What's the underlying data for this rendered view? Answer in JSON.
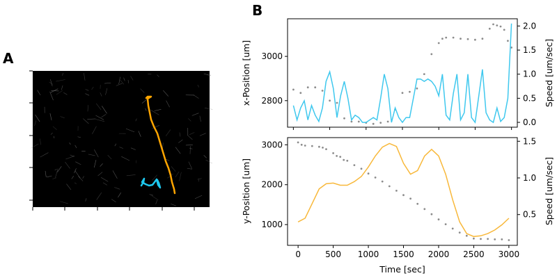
{
  "panels": {
    "a": "A",
    "b": "B"
  },
  "colors": {
    "orange": "#ffa500",
    "cyan": "#1ec8ee",
    "gray": "#8c8c8c",
    "speed_x": "#3fc8ee",
    "speed_y": "#f8b83a"
  },
  "chart_data": [
    {
      "type": "image",
      "panel": "A",
      "tracks": [
        {
          "name": "",
          "color": "orange"
        },
        {
          "name": "",
          "color": "cyan"
        }
      ]
    },
    {
      "type": "line",
      "panel": "B-top",
      "xlabel": "",
      "ylabel": "x-Position [um]",
      "ylabel_right": "Speed [um/sec]",
      "xlim": [
        -80,
        3080
      ],
      "ylim": [
        2680,
        3170
      ],
      "ylim_right": [
        -0.1,
        2.15
      ],
      "x_ticks": [
        0,
        500,
        1000,
        1500,
        2000,
        2500,
        3000
      ],
      "y_ticks": [
        2800,
        3000
      ],
      "y_ticks_right": [
        0.0,
        0.5,
        1.0,
        1.5,
        2.0
      ],
      "series": [
        {
          "axis": "left",
          "style": "dots",
          "color": "gray",
          "x": [
            0,
            100,
            200,
            300,
            400,
            500,
            600,
            700,
            800,
            900,
            1000,
            1100,
            1200,
            1300,
            1400,
            1500,
            1600,
            1700,
            1800,
            1900,
            2000,
            2050,
            2100,
            2200,
            2300,
            2400,
            2500,
            2600,
            2700,
            2750,
            2800,
            2850,
            2900,
            2950,
            3000
          ],
          "y": [
            2850,
            2835,
            2860,
            2860,
            2845,
            2800,
            2790,
            2720,
            2705,
            2705,
            2700,
            2695,
            2700,
            2705,
            2760,
            2835,
            2840,
            2855,
            2920,
            3010,
            3060,
            3080,
            3085,
            3085,
            3080,
            3078,
            3075,
            3080,
            3125,
            3145,
            3140,
            3135,
            3120,
            3070,
            3040
          ]
        },
        {
          "axis": "right",
          "style": "line",
          "color": "speed_x",
          "x": [
            0,
            50,
            100,
            150,
            200,
            250,
            300,
            350,
            400,
            450,
            500,
            550,
            600,
            650,
            700,
            750,
            800,
            850,
            900,
            950,
            1000,
            1050,
            1100,
            1150,
            1200,
            1250,
            1300,
            1350,
            1400,
            1450,
            1500,
            1550,
            1600,
            1650,
            1700,
            1750,
            1800,
            1850,
            1900,
            1950,
            2000,
            2050,
            2100,
            2150,
            2200,
            2250,
            2300,
            2350,
            2400,
            2450,
            2500,
            2550,
            2600,
            2650,
            2700,
            2750,
            2800,
            2850,
            2900,
            2950,
            3000
          ],
          "y": [
            0.35,
            0.05,
            0.3,
            0.45,
            0.05,
            0.35,
            0.15,
            0.02,
            0.3,
            0.85,
            1.05,
            0.7,
            0.1,
            0.55,
            0.85,
            0.5,
            0.05,
            0.15,
            0.1,
            0.0,
            0.0,
            0.05,
            0.1,
            0.05,
            0.5,
            1.0,
            0.7,
            0.0,
            0.3,
            0.1,
            0.0,
            0.1,
            0.1,
            0.5,
            0.9,
            0.9,
            0.85,
            0.9,
            0.85,
            0.75,
            0.55,
            1.0,
            0.15,
            0.05,
            0.6,
            1.0,
            0.05,
            0.2,
            1.0,
            0.1,
            0.0,
            0.55,
            1.1,
            0.2,
            0.05,
            0.0,
            0.3,
            0.02,
            0.1,
            0.5,
            2.05
          ]
        }
      ]
    },
    {
      "type": "line",
      "panel": "B-bottom",
      "xlabel": "Time [sec]",
      "ylabel": "y-Position [um]",
      "ylabel_right": "Speed [um/sec]",
      "xlim": [
        -150,
        3120
      ],
      "ylim": [
        480,
        3180
      ],
      "ylim_right": [
        0.08,
        1.55
      ],
      "x_ticks": [
        0,
        500,
        1000,
        1500,
        2000,
        2500,
        3000
      ],
      "y_ticks": [
        1000,
        2000,
        3000
      ],
      "y_ticks_right": [
        0.5,
        1.0,
        1.5
      ],
      "series": [
        {
          "axis": "left",
          "style": "dots",
          "color": "gray",
          "x": [
            0,
            50,
            100,
            200,
            300,
            350,
            400,
            500,
            550,
            600,
            650,
            700,
            800,
            900,
            1000,
            1100,
            1200,
            1300,
            1400,
            1500,
            1600,
            1700,
            1800,
            1900,
            2000,
            2100,
            2200,
            2300,
            2400,
            2500,
            2600,
            2700,
            2800,
            2900,
            3000
          ],
          "y": [
            3060,
            3000,
            2980,
            2970,
            2950,
            2930,
            2890,
            2790,
            2720,
            2700,
            2620,
            2600,
            2490,
            2400,
            2280,
            2180,
            2080,
            1960,
            1850,
            1740,
            1650,
            1520,
            1390,
            1260,
            1130,
            1010,
            900,
            800,
            720,
            650,
            640,
            640,
            630,
            630,
            610
          ]
        },
        {
          "axis": "right",
          "style": "line",
          "color": "speed_y",
          "x": [
            0,
            100,
            200,
            300,
            400,
            500,
            600,
            700,
            800,
            900,
            1000,
            1100,
            1200,
            1300,
            1400,
            1500,
            1600,
            1700,
            1800,
            1900,
            2000,
            2100,
            2200,
            2300,
            2400,
            2500,
            2600,
            2700,
            2800,
            2900,
            3000
          ],
          "y": [
            0.4,
            0.45,
            0.65,
            0.85,
            0.92,
            0.93,
            0.9,
            0.9,
            0.95,
            1.02,
            1.15,
            1.3,
            1.42,
            1.47,
            1.43,
            1.2,
            1.05,
            1.1,
            1.3,
            1.39,
            1.3,
            1.05,
            0.7,
            0.4,
            0.24,
            0.2,
            0.21,
            0.24,
            0.29,
            0.36,
            0.45
          ]
        }
      ]
    }
  ]
}
